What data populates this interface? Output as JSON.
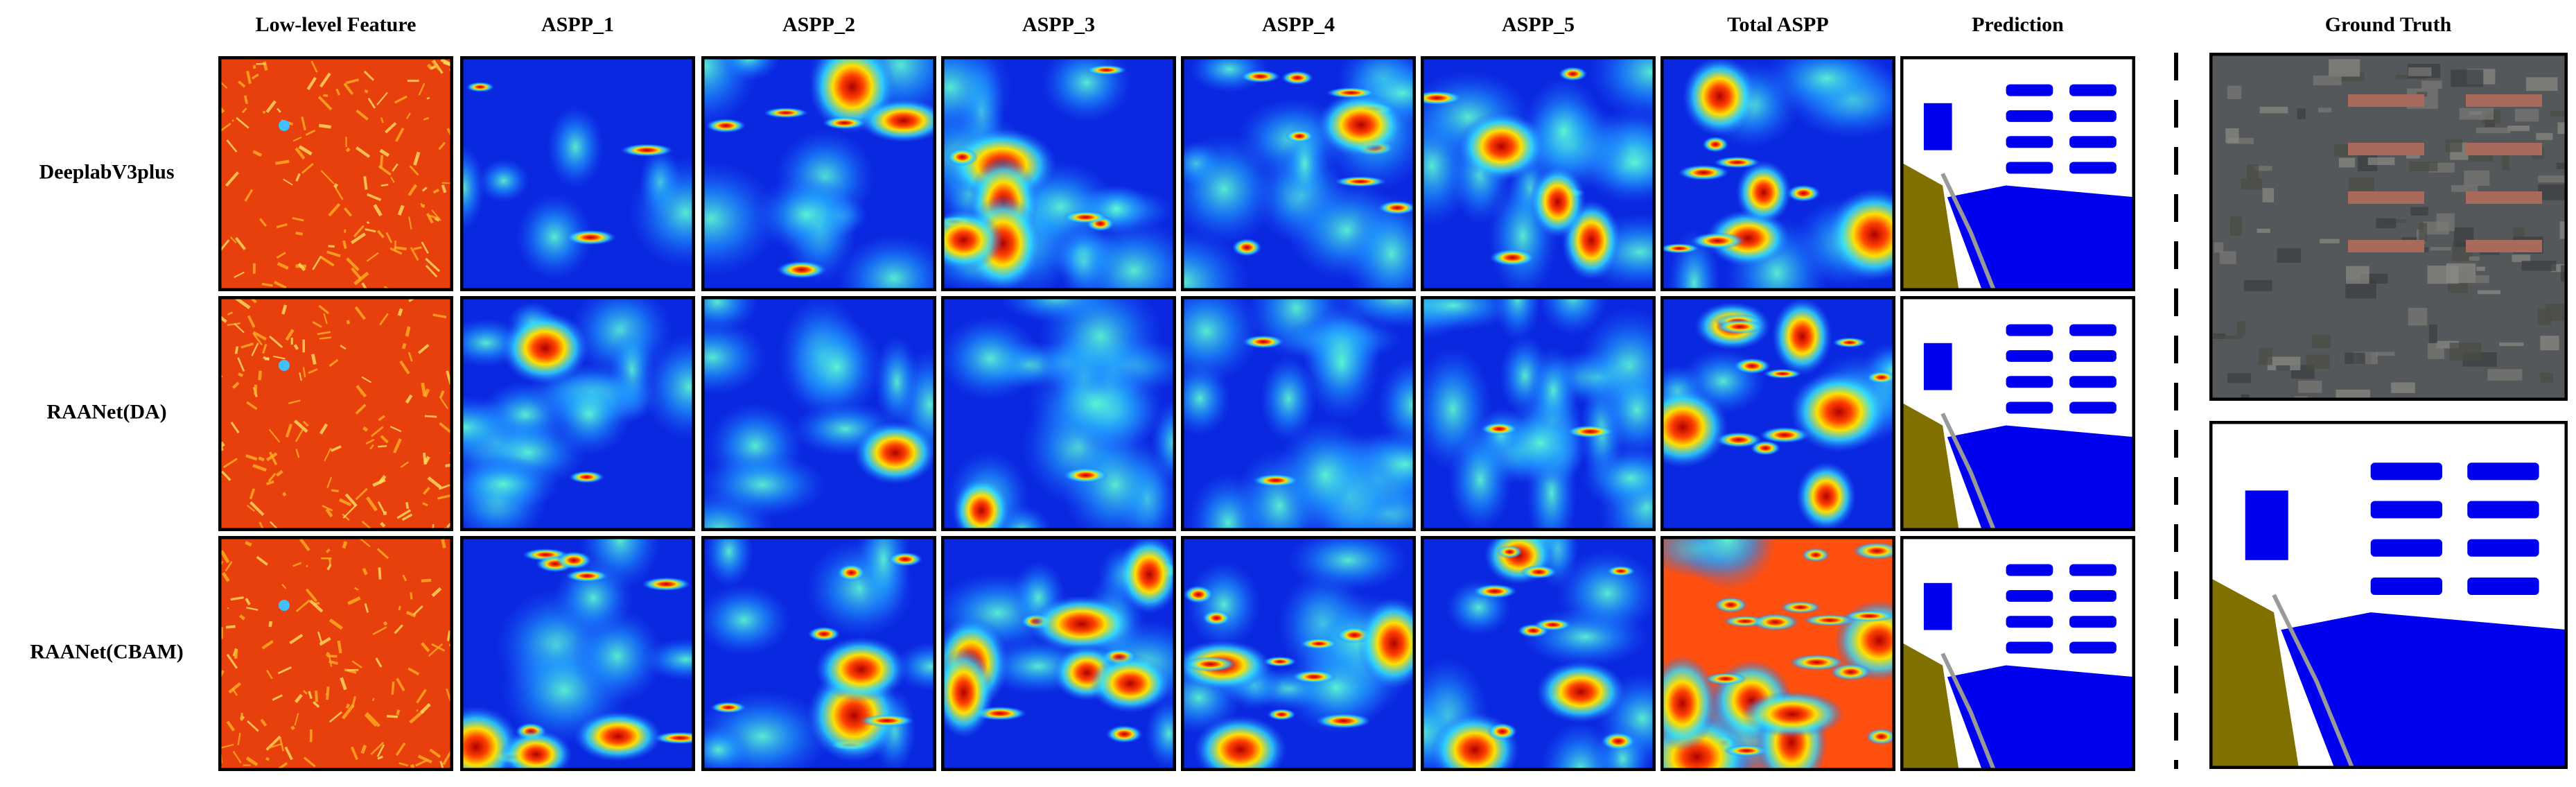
{
  "columns": [
    "Low-level Feature",
    "ASPP_1",
    "ASPP_2",
    "ASPP_3",
    "ASPP_4",
    "ASPP_5",
    "Total ASPP",
    "Prediction"
  ],
  "rows": [
    "DeeplabV3plus",
    "RAANet(DA)",
    "RAANet(CBAM)"
  ],
  "ground_truth": {
    "title": "Ground Truth"
  }
}
